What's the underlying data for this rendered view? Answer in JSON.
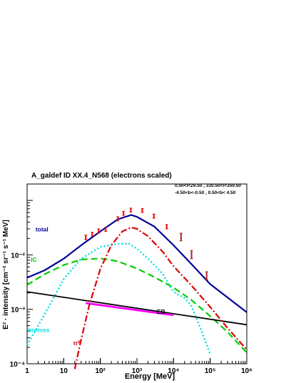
{
  "chart_data": {
    "type": "line",
    "title": "A_galdef ID XX.4_N568 (electrons scaled)",
    "region_label_1": "0.50<l<29.50 , 330.50<l<359.50",
    "region_label_2": "-4.50<b<-0.50 , 0.50<b< 4.50",
    "xlabel": "Energy [MeV]",
    "ylabel": "E² · intensity [cm⁻² sr⁻¹ s⁻¹ MeV]",
    "x_scale": "log",
    "y_scale": "log",
    "xlim": [
      1,
      1000000
    ],
    "ylim": [
      0.0001,
      0.2
    ],
    "x_ticks": [
      {
        "value": 1,
        "label": "1"
      },
      {
        "value": 10,
        "label": "10"
      },
      {
        "value": 100,
        "label": "10²"
      },
      {
        "value": 1000,
        "label": "10³"
      },
      {
        "value": 10000,
        "label": "10⁴"
      },
      {
        "value": 100000,
        "label": "10⁵"
      },
      {
        "value": 1000000,
        "label": "10⁶"
      }
    ],
    "y_ticks": [
      {
        "value": 0.0001,
        "label": "10⁻⁴"
      },
      {
        "value": 0.001,
        "label": "10⁻³"
      },
      {
        "value": 0.01,
        "label": "10⁻²"
      }
    ],
    "series": [
      {
        "name": "total",
        "color": "#000099",
        "style": "solid",
        "width": 2.2,
        "x": [
          1,
          3,
          10,
          30,
          100,
          300,
          700,
          1000,
          3000,
          10000,
          30000,
          100000,
          1000000
        ],
        "y": [
          0.0038,
          0.0052,
          0.0085,
          0.015,
          0.027,
          0.045,
          0.054,
          0.05,
          0.033,
          0.015,
          0.0069,
          0.0029,
          0.00088
        ]
      },
      {
        "name": "IC",
        "color": "#00cc00",
        "style": "dash",
        "width": 2.2,
        "x": [
          1,
          3,
          10,
          30,
          100,
          300,
          1000,
          3000,
          10000,
          30000,
          100000,
          300000,
          1000000
        ],
        "y": [
          0.0028,
          0.0044,
          0.0065,
          0.0082,
          0.0086,
          0.0076,
          0.0056,
          0.0039,
          0.0025,
          0.0015,
          0.00075,
          0.00038,
          0.00016
        ]
      },
      {
        "name": "EB",
        "color": "#000000",
        "style": "solid",
        "width": 1.8,
        "x": [
          1,
          1000000
        ],
        "y": [
          0.0021,
          0.00052
        ]
      },
      {
        "name": "EB",
        "color": "#ff00ff",
        "style": "solid",
        "width": 2.8,
        "x": [
          40,
          10000
        ],
        "y": [
          0.0013,
          0.00078
        ]
      },
      {
        "name": "bremss",
        "color": "#00dddd",
        "style": "dot",
        "width": 2.4,
        "x": [
          1,
          2,
          5,
          10,
          30,
          100,
          300,
          600,
          1000,
          2000,
          3000,
          5000,
          10000,
          20000,
          30000,
          60000,
          100000
        ],
        "y": [
          0.00022,
          0.0005,
          0.0015,
          0.0036,
          0.0085,
          0.014,
          0.016,
          0.016,
          0.013,
          0.0085,
          0.0065,
          0.0045,
          0.0021,
          0.0016,
          0.0012,
          0.00038,
          0.00015
        ]
      },
      {
        "name": "π⁰",
        "color": "#dd0000",
        "style": "dashdot",
        "width": 2.2,
        "x": [
          20,
          30,
          50,
          100,
          200,
          400,
          700,
          1000,
          2000,
          5000,
          10000,
          30000,
          100000,
          300000,
          1000000
        ],
        "y": [
          8e-05,
          0.00028,
          0.0012,
          0.0055,
          0.015,
          0.027,
          0.032,
          0.03,
          0.022,
          0.0115,
          0.0062,
          0.0028,
          0.0011,
          0.00045,
          0.00018
        ]
      }
    ],
    "data_points": {
      "name": "data",
      "points": [
        {
          "x": 40,
          "y": 0.021,
          "err": [
            0.019,
            0.023
          ],
          "color": "#ee0000"
        },
        {
          "x": 60,
          "y": 0.024,
          "err": [
            0.022,
            0.026
          ],
          "color": "#ee0000"
        },
        {
          "x": 90,
          "y": 0.027,
          "err": [
            0.025,
            0.03
          ],
          "color": "#ee0000"
        },
        {
          "x": 140,
          "y": 0.029,
          "err": [
            0.027,
            0.032
          ],
          "color": "#ee0000"
        },
        {
          "x": 300,
          "y": 0.046,
          "err": [
            0.042,
            0.05
          ],
          "color": "#ee0000"
        },
        {
          "x": 430,
          "y": 0.058,
          "err": [
            0.053,
            0.063
          ],
          "color": "#ee0000"
        },
        {
          "x": 680,
          "y": 0.066,
          "err": [
            0.061,
            0.072
          ],
          "color": "#ee0000"
        },
        {
          "x": 1400,
          "y": 0.065,
          "err": [
            0.06,
            0.071
          ],
          "color": "#ee0000"
        },
        {
          "x": 2900,
          "y": 0.051,
          "err": [
            0.047,
            0.056
          ],
          "color": "#ee0000"
        },
        {
          "x": 6500,
          "y": 0.033,
          "err": [
            0.03,
            0.036
          ],
          "color": "#ee0000"
        },
        {
          "x": 16000,
          "y": 0.021,
          "err": [
            0.018,
            0.025
          ],
          "color": "#aa2222"
        },
        {
          "x": 31000,
          "y": 0.01,
          "err": [
            0.0085,
            0.012
          ],
          "color": "#aa2222"
        },
        {
          "x": 80000,
          "y": 0.0041,
          "err": [
            0.0035,
            0.0049
          ],
          "color": "#aa2222"
        }
      ]
    },
    "curve_labels": [
      {
        "text": "total",
        "x": 1.7,
        "y": 0.027,
        "color": "#000099"
      },
      {
        "text": "IC",
        "x": 1.25,
        "y": 0.0075,
        "color": "#00cc00"
      },
      {
        "text": "EB",
        "x": 3500,
        "y": 0.00082,
        "color": "#000000"
      },
      {
        "text": "bremss",
        "x": 1.05,
        "y": 0.00038,
        "color": "#00dddd"
      },
      {
        "text": "π⁰",
        "x": 18,
        "y": 0.00022,
        "color": "#dd0000"
      }
    ]
  }
}
